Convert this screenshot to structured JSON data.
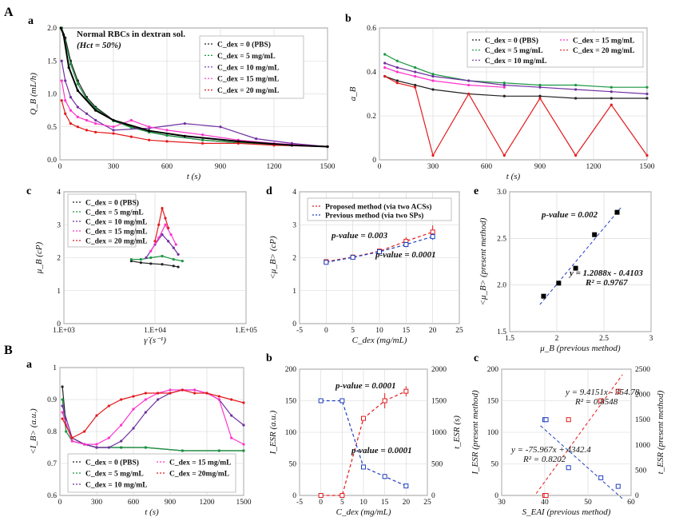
{
  "figure": {
    "sections": [
      "A",
      "B"
    ],
    "panel_letters": [
      "a",
      "b",
      "c",
      "d",
      "e",
      "a",
      "b",
      "c"
    ]
  },
  "chart_data": [
    {
      "id": "Aa",
      "panel": "a",
      "type": "scatter",
      "annotation": [
        "Normal RBCs in dextran sol.",
        "(Hct = 50%)"
      ],
      "xlabel": "t (s)",
      "ylabel": "Q_B (mL/h)",
      "xlim": [
        0,
        1500
      ],
      "ylim": [
        0,
        2
      ],
      "xticks": [
        0,
        300,
        600,
        900,
        1200,
        1500
      ],
      "yticks": [
        0.0,
        0.5,
        1.0,
        1.5,
        2.0
      ],
      "legend": "top-right",
      "grid": true,
      "series": [
        {
          "name": "C_dex = 0 (PBS)",
          "color": "#222222",
          "x": [
            10,
            30,
            60,
            100,
            150,
            200,
            300,
            400,
            500,
            600,
            800,
            1000,
            1200,
            1500
          ],
          "y": [
            2.0,
            1.85,
            1.5,
            1.2,
            0.95,
            0.8,
            0.6,
            0.5,
            0.42,
            0.37,
            0.3,
            0.26,
            0.23,
            0.2
          ]
        },
        {
          "name": "C_dex = 5 mg/mL",
          "color": "#1a9641",
          "x": [
            10,
            30,
            60,
            100,
            150,
            200,
            300,
            400,
            500,
            600,
            800,
            1000,
            1200,
            1500
          ],
          "y": [
            2.0,
            1.8,
            1.45,
            1.15,
            0.92,
            0.78,
            0.59,
            0.49,
            0.42,
            0.37,
            0.3,
            0.26,
            0.23,
            0.2
          ]
        },
        {
          "name": "C_dex = 10 mg/mL",
          "color": "#7030a0",
          "x": [
            10,
            30,
            60,
            100,
            150,
            200,
            300,
            500,
            700,
            900,
            1100,
            1300,
            1500
          ],
          "y": [
            1.5,
            1.2,
            0.95,
            0.8,
            0.7,
            0.6,
            0.45,
            0.48,
            0.55,
            0.5,
            0.32,
            0.25,
            0.2
          ]
        },
        {
          "name": "C_dex = 15 mg/mL",
          "color": "#ff33cc",
          "x": [
            10,
            30,
            60,
            100,
            150,
            200,
            300,
            400,
            500,
            600,
            800,
            1000,
            1200,
            1500
          ],
          "y": [
            1.2,
            0.9,
            0.75,
            0.65,
            0.6,
            0.55,
            0.5,
            0.6,
            0.5,
            0.45,
            0.38,
            0.3,
            0.25,
            0.2
          ]
        },
        {
          "name": "C_dex = 20 mg/mL",
          "color": "#e31a1c",
          "x": [
            10,
            30,
            60,
            100,
            150,
            200,
            300,
            400,
            500,
            600,
            800,
            1000,
            1200,
            1500
          ],
          "y": [
            0.9,
            0.7,
            0.55,
            0.5,
            0.45,
            0.42,
            0.4,
            0.35,
            0.3,
            0.28,
            0.25,
            0.25,
            0.22,
            0.2
          ]
        },
        {
          "name": "",
          "color": "#000000",
          "x": [
            5,
            20,
            50,
            100,
            200,
            300,
            500,
            700,
            1000,
            1300,
            1500
          ],
          "y": [
            2.0,
            1.9,
            1.4,
            1.05,
            0.75,
            0.6,
            0.44,
            0.36,
            0.28,
            0.22,
            0.2
          ]
        }
      ]
    },
    {
      "id": "Ab",
      "panel": "b",
      "type": "scatter",
      "xlabel": "t (s)",
      "ylabel": "a_B",
      "xlim": [
        0,
        1500
      ],
      "ylim": [
        0,
        0.6
      ],
      "xticks": [
        0,
        300,
        600,
        900,
        1200,
        1500
      ],
      "yticks": [
        0.0,
        0.2,
        0.4,
        0.6
      ],
      "legend": "top-right",
      "grid": true,
      "series": [
        {
          "name": "C_dex = 0 (PBS)",
          "color": "#222222",
          "x": [
            30,
            100,
            200,
            300,
            500,
            700,
            900,
            1100,
            1300,
            1500
          ],
          "y": [
            0.38,
            0.36,
            0.34,
            0.32,
            0.3,
            0.29,
            0.29,
            0.28,
            0.28,
            0.28
          ]
        },
        {
          "name": "C_dex = 5 mg/mL",
          "color": "#1a9641",
          "x": [
            30,
            100,
            200,
            300,
            500,
            700,
            900,
            1100,
            1300,
            1500
          ],
          "y": [
            0.48,
            0.45,
            0.42,
            0.39,
            0.36,
            0.35,
            0.34,
            0.34,
            0.33,
            0.33
          ]
        },
        {
          "name": "C_dex = 10 mg/mL",
          "color": "#7030a0",
          "x": [
            30,
            100,
            200,
            300,
            500,
            700,
            900,
            1100,
            1300,
            1500
          ],
          "y": [
            0.44,
            0.42,
            0.4,
            0.38,
            0.36,
            0.34,
            0.33,
            0.32,
            0.31,
            0.3
          ]
        },
        {
          "name": "C_dex = 15 mg/mL",
          "color": "#ff33cc",
          "x": [
            30,
            100,
            200,
            300,
            500,
            700
          ],
          "y": [
            0.42,
            0.4,
            0.38,
            0.36,
            0.34,
            0.33
          ]
        },
        {
          "name": "C_dex = 20 mg/mL",
          "color": "#e31a1c",
          "x": [
            30,
            100,
            200,
            300,
            500,
            700,
            900,
            1100,
            1300,
            1500
          ],
          "y": [
            0.38,
            0.35,
            0.33,
            0.02,
            0.3,
            0.02,
            0.28,
            0.02,
            0.25,
            0.02
          ]
        }
      ]
    },
    {
      "id": "Ac",
      "panel": "c",
      "type": "scatter",
      "xscale": "log",
      "xlabel": "γ̇ (s⁻¹)",
      "ylabel": "μ_B (cP)",
      "xlim": [
        1000,
        100000
      ],
      "ylim": [
        0,
        4
      ],
      "xticks": [
        "1.E+03",
        "1.E+04",
        "1.E+05"
      ],
      "yticks": [
        0,
        1,
        2,
        3,
        4
      ],
      "legend": "top-left",
      "grid": true,
      "series": [
        {
          "name": "C_dex = 0 (PBS)",
          "color": "#222222",
          "x": [
            5500,
            7000,
            9000,
            12000,
            16000,
            18000
          ],
          "y": [
            1.9,
            1.85,
            1.82,
            1.8,
            1.75,
            1.72
          ]
        },
        {
          "name": "C_dex = 5 mg/mL",
          "color": "#1a9641",
          "x": [
            5500,
            7000,
            9000,
            12000,
            16000,
            20000
          ],
          "y": [
            1.95,
            1.95,
            2.0,
            2.05,
            1.95,
            1.9
          ]
        },
        {
          "name": "C_dex = 10 mg/mL",
          "color": "#7030a0",
          "x": [
            8000,
            10000,
            12000,
            14000,
            16000,
            18000
          ],
          "y": [
            2.0,
            2.4,
            2.7,
            2.5,
            2.3,
            2.1
          ]
        },
        {
          "name": "C_dex = 15 mg/mL",
          "color": "#ff33cc",
          "x": [
            9000,
            11000,
            13000,
            15000,
            17000
          ],
          "y": [
            2.2,
            2.6,
            3.0,
            2.7,
            2.4
          ]
        },
        {
          "name": "C_dex = 20 mg/mL",
          "color": "#e31a1c",
          "x": [
            10000,
            11000,
            12000,
            13000,
            14000
          ],
          "y": [
            2.5,
            3.0,
            3.5,
            3.2,
            2.9
          ]
        }
      ]
    },
    {
      "id": "Ad",
      "panel": "d",
      "type": "line",
      "xlabel": "C_dex (mg/mL)",
      "ylabel": "<μ_B> (cP)",
      "xlim": [
        -5,
        25
      ],
      "ylim": [
        0,
        4
      ],
      "xticks": [
        -5,
        0,
        5,
        10,
        15,
        20,
        25
      ],
      "yticks": [
        0,
        1,
        2,
        3,
        4
      ],
      "legend": "top",
      "grid": true,
      "annotations": [
        "p-value = 0.003",
        "p-value = 0.0001"
      ],
      "series": [
        {
          "name": "Proposed method (via two ACSs)",
          "color": "#e31a1c",
          "x": [
            0,
            5,
            10,
            15,
            20
          ],
          "y": [
            1.88,
            2.02,
            2.2,
            2.5,
            2.78
          ],
          "err": [
            0.05,
            0.05,
            0.06,
            0.12,
            0.2
          ]
        },
        {
          "name": "Previous method (via two SPs)",
          "color": "#1f3fbf",
          "x": [
            0,
            5,
            10,
            15,
            20
          ],
          "y": [
            1.86,
            2.01,
            2.18,
            2.4,
            2.64
          ],
          "err": [
            0.04,
            0.04,
            0.05,
            0.08,
            0.1
          ]
        }
      ]
    },
    {
      "id": "Ae",
      "panel": "e",
      "type": "scatter",
      "xlabel": "μ_B (previous method)",
      "ylabel": "<μ_B> (present method)",
      "xlim": [
        1.5,
        3.0
      ],
      "ylim": [
        1.5,
        3.0
      ],
      "xticks": [
        1.5,
        2.0,
        2.5,
        3.0
      ],
      "yticks": [
        1.5,
        2.0,
        2.5,
        3.0
      ],
      "grid": true,
      "annotations": [
        "p-value = 0.002",
        "y = 1.2088x - 0.4103",
        "R² = 0.9767"
      ],
      "series": [
        {
          "name": "",
          "color": "#000000",
          "x": [
            1.86,
            2.02,
            2.2,
            2.4,
            2.64
          ],
          "y": [
            1.88,
            2.02,
            2.18,
            2.54,
            2.78
          ]
        }
      ],
      "fit": {
        "slope": 1.2088,
        "intercept": -0.4103,
        "x": [
          1.82,
          2.68
        ],
        "color": "#1f3fbf"
      }
    },
    {
      "id": "Ba",
      "panel": "a",
      "type": "scatter",
      "xlabel": "t (s)",
      "ylabel": "<I_B> (a.u.)",
      "xlim": [
        0,
        1500
      ],
      "ylim": [
        0.6,
        1.0
      ],
      "xticks": [
        0,
        300,
        600,
        900,
        1200,
        1500
      ],
      "yticks": [
        0.6,
        0.7,
        0.8,
        0.9,
        1.0
      ],
      "legend": "bottom",
      "grid": true,
      "series": [
        {
          "name": "C_dex = 0 (PBS)",
          "color": "#222222",
          "x": [
            20,
            50,
            100,
            200,
            300,
            500,
            700,
            1000,
            1300,
            1500
          ],
          "y": [
            0.94,
            0.82,
            0.78,
            0.76,
            0.75,
            0.75,
            0.75,
            0.74,
            0.74,
            0.74
          ]
        },
        {
          "name": "C_dex = 5 mg/mL",
          "color": "#1a9641",
          "x": [
            20,
            50,
            100,
            200,
            300,
            500,
            700,
            1000,
            1300,
            1500
          ],
          "y": [
            0.9,
            0.8,
            0.77,
            0.76,
            0.75,
            0.75,
            0.75,
            0.74,
            0.74,
            0.74
          ]
        },
        {
          "name": "C_dex = 10 mg/mL",
          "color": "#7030a0",
          "x": [
            20,
            100,
            200,
            300,
            400,
            500,
            600,
            700,
            800,
            900,
            1000,
            1100,
            1200,
            1300,
            1400,
            1500
          ],
          "y": [
            0.88,
            0.78,
            0.76,
            0.75,
            0.75,
            0.77,
            0.81,
            0.86,
            0.9,
            0.92,
            0.93,
            0.93,
            0.92,
            0.9,
            0.85,
            0.82
          ]
        },
        {
          "name": "C_dex = 15 mg/mL",
          "color": "#ff33cc",
          "x": [
            20,
            100,
            200,
            300,
            400,
            500,
            600,
            700,
            800,
            900,
            1000,
            1100,
            1200,
            1300,
            1400,
            1500
          ],
          "y": [
            0.86,
            0.77,
            0.76,
            0.76,
            0.78,
            0.82,
            0.87,
            0.9,
            0.92,
            0.93,
            0.93,
            0.93,
            0.92,
            0.9,
            0.78,
            0.76
          ]
        },
        {
          "name": "C_dex = 20mg/mL",
          "color": "#e31a1c",
          "x": [
            20,
            100,
            200,
            300,
            400,
            500,
            600,
            700,
            800,
            900,
            1000,
            1100,
            1200,
            1300,
            1400,
            1500
          ],
          "y": [
            0.84,
            0.78,
            0.8,
            0.85,
            0.88,
            0.9,
            0.91,
            0.92,
            0.92,
            0.92,
            0.93,
            0.92,
            0.92,
            0.91,
            0.9,
            0.89
          ]
        }
      ]
    },
    {
      "id": "Bb",
      "panel": "b",
      "type": "line",
      "xlabel": "C_dex (mg/mL)",
      "ylabel": "I_ESR (a.u.)",
      "y2label": "t_ESR (s)",
      "xlim": [
        -5,
        25
      ],
      "ylim": [
        0,
        200
      ],
      "y2lim": [
        0,
        2000
      ],
      "xticks": [
        -5,
        0,
        5,
        10,
        15,
        20,
        25
      ],
      "yticks": [
        0,
        50,
        100,
        150,
        200
      ],
      "y2ticks": [
        0,
        500,
        1000,
        1500,
        2000
      ],
      "grid": true,
      "annotations": [
        "p-value = 0.0001",
        "p-value = 0.0001"
      ],
      "series": [
        {
          "name": "",
          "axis": "left",
          "color": "#e31a1c",
          "x": [
            0,
            5,
            10,
            15,
            20
          ],
          "y": [
            0,
            0,
            122,
            150,
            165
          ],
          "err": [
            1,
            1,
            4,
            12,
            8
          ]
        },
        {
          "name": "",
          "axis": "right",
          "color": "#1f3fbf",
          "x": [
            0,
            5,
            10,
            15,
            20
          ],
          "y": [
            1500,
            1500,
            450,
            300,
            150
          ],
          "err": [
            10,
            10,
            30,
            40,
            20
          ]
        }
      ]
    },
    {
      "id": "Bc",
      "panel": "c",
      "type": "scatter",
      "xlabel": "S_EAI (previous method)",
      "ylabel": "I_ESR (present method)",
      "y2label": "t_ESR (present method)",
      "xlim": [
        30,
        60
      ],
      "ylim": [
        0,
        200
      ],
      "y2lim": [
        0,
        2500
      ],
      "xticks": [
        30,
        40,
        50,
        60
      ],
      "yticks": [
        0,
        50,
        100,
        150,
        200
      ],
      "y2ticks": [
        0,
        500,
        1000,
        1500,
        2000,
        2500
      ],
      "grid": true,
      "annotations": [
        "y = 9.4151x - 354.78",
        "R² = 0.8548",
        "y = -75.967x + 4342.4",
        "R² = 0.8202"
      ],
      "series": [
        {
          "name": "",
          "axis": "left",
          "color": "#e31a1c",
          "x": [
            40,
            40.3,
            45.5,
            53,
            57
          ],
          "y": [
            0,
            0,
            120,
            150,
            165
          ]
        },
        {
          "name": "",
          "axis": "right",
          "color": "#1f3fbf",
          "x": [
            40,
            40.3,
            45.5,
            53,
            57
          ],
          "y": [
            1500,
            1500,
            550,
            350,
            180
          ]
        }
      ],
      "fits": [
        {
          "axis": "left",
          "slope": 9.4151,
          "intercept": -354.78,
          "x": [
            38,
            58
          ],
          "color": "#e31a1c"
        },
        {
          "axis": "right",
          "slope": -75.967,
          "intercept": 4342.4,
          "x": [
            39,
            58
          ],
          "color": "#1f3fbf"
        }
      ]
    }
  ]
}
